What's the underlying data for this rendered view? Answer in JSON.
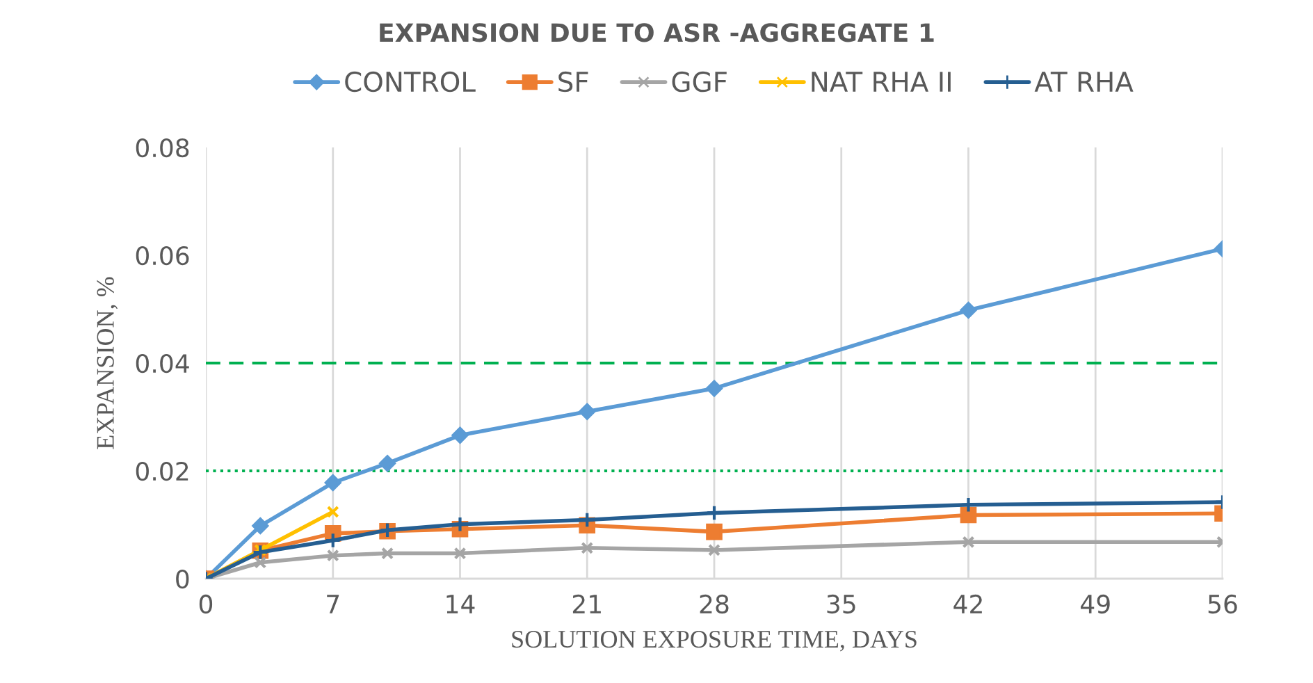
{
  "chart_data": {
    "type": "line",
    "title": "EXPANSION DUE TO ASR -AGGREGATE 1",
    "xlabel": "SOLUTION EXPOSURE TIME, DAYS",
    "ylabel": "EXPANSION, %",
    "series": [
      {
        "name": "CONTROL",
        "color": "#5b9bd5",
        "marker": "diamond",
        "x": [
          0,
          3,
          7,
          10,
          14,
          21,
          28,
          42,
          56
        ],
        "values": [
          0,
          0.0098,
          0.0178,
          0.0214,
          0.0266,
          0.031,
          0.0353,
          0.0498,
          0.0612
        ]
      },
      {
        "name": "SF",
        "color": "#ed7d31",
        "marker": "square",
        "x": [
          0,
          3,
          7,
          10,
          14,
          21,
          28,
          42,
          56
        ],
        "values": [
          0,
          0.0052,
          0.0084,
          0.0088,
          0.0092,
          0.0099,
          0.0087,
          0.0118,
          0.0121
        ]
      },
      {
        "name": "GGF",
        "color": "#a5a5a5",
        "marker": "star",
        "x": [
          0,
          3,
          7,
          10,
          14,
          21,
          28,
          42,
          56
        ],
        "values": [
          0,
          0.003,
          0.0043,
          0.0047,
          0.0047,
          0.0057,
          0.0053,
          0.0068,
          0.0068
        ]
      },
      {
        "name": "NAT RHA II",
        "color": "#ffc000",
        "marker": "star",
        "x": [
          0,
          3,
          7
        ],
        "values": [
          0,
          0.0053,
          0.0124
        ]
      },
      {
        "name": "AT RHA",
        "color": "#255e91",
        "marker": "cross",
        "x": [
          0,
          3,
          7,
          10,
          14,
          21,
          28,
          42,
          56
        ],
        "values": [
          0,
          0.0049,
          0.0071,
          0.009,
          0.0101,
          0.0109,
          0.0122,
          0.0137,
          0.0142
        ]
      }
    ],
    "xlim": [
      0,
      56
    ],
    "xticks": [
      0,
      7,
      14,
      21,
      28,
      35,
      42,
      49,
      56
    ],
    "ylim": [
      0,
      0.08
    ],
    "yticks": [
      0,
      0.02,
      0.04,
      0.06,
      0.08
    ],
    "ref_lines": [
      {
        "axis": "y",
        "value": 0.04,
        "color": "#00b050",
        "line_style": "dashed"
      },
      {
        "axis": "y",
        "value": 0.02,
        "color": "#00b050",
        "line_style": "dotted"
      }
    ],
    "grid": "x",
    "legend": "top",
    "line_style": "solid"
  }
}
